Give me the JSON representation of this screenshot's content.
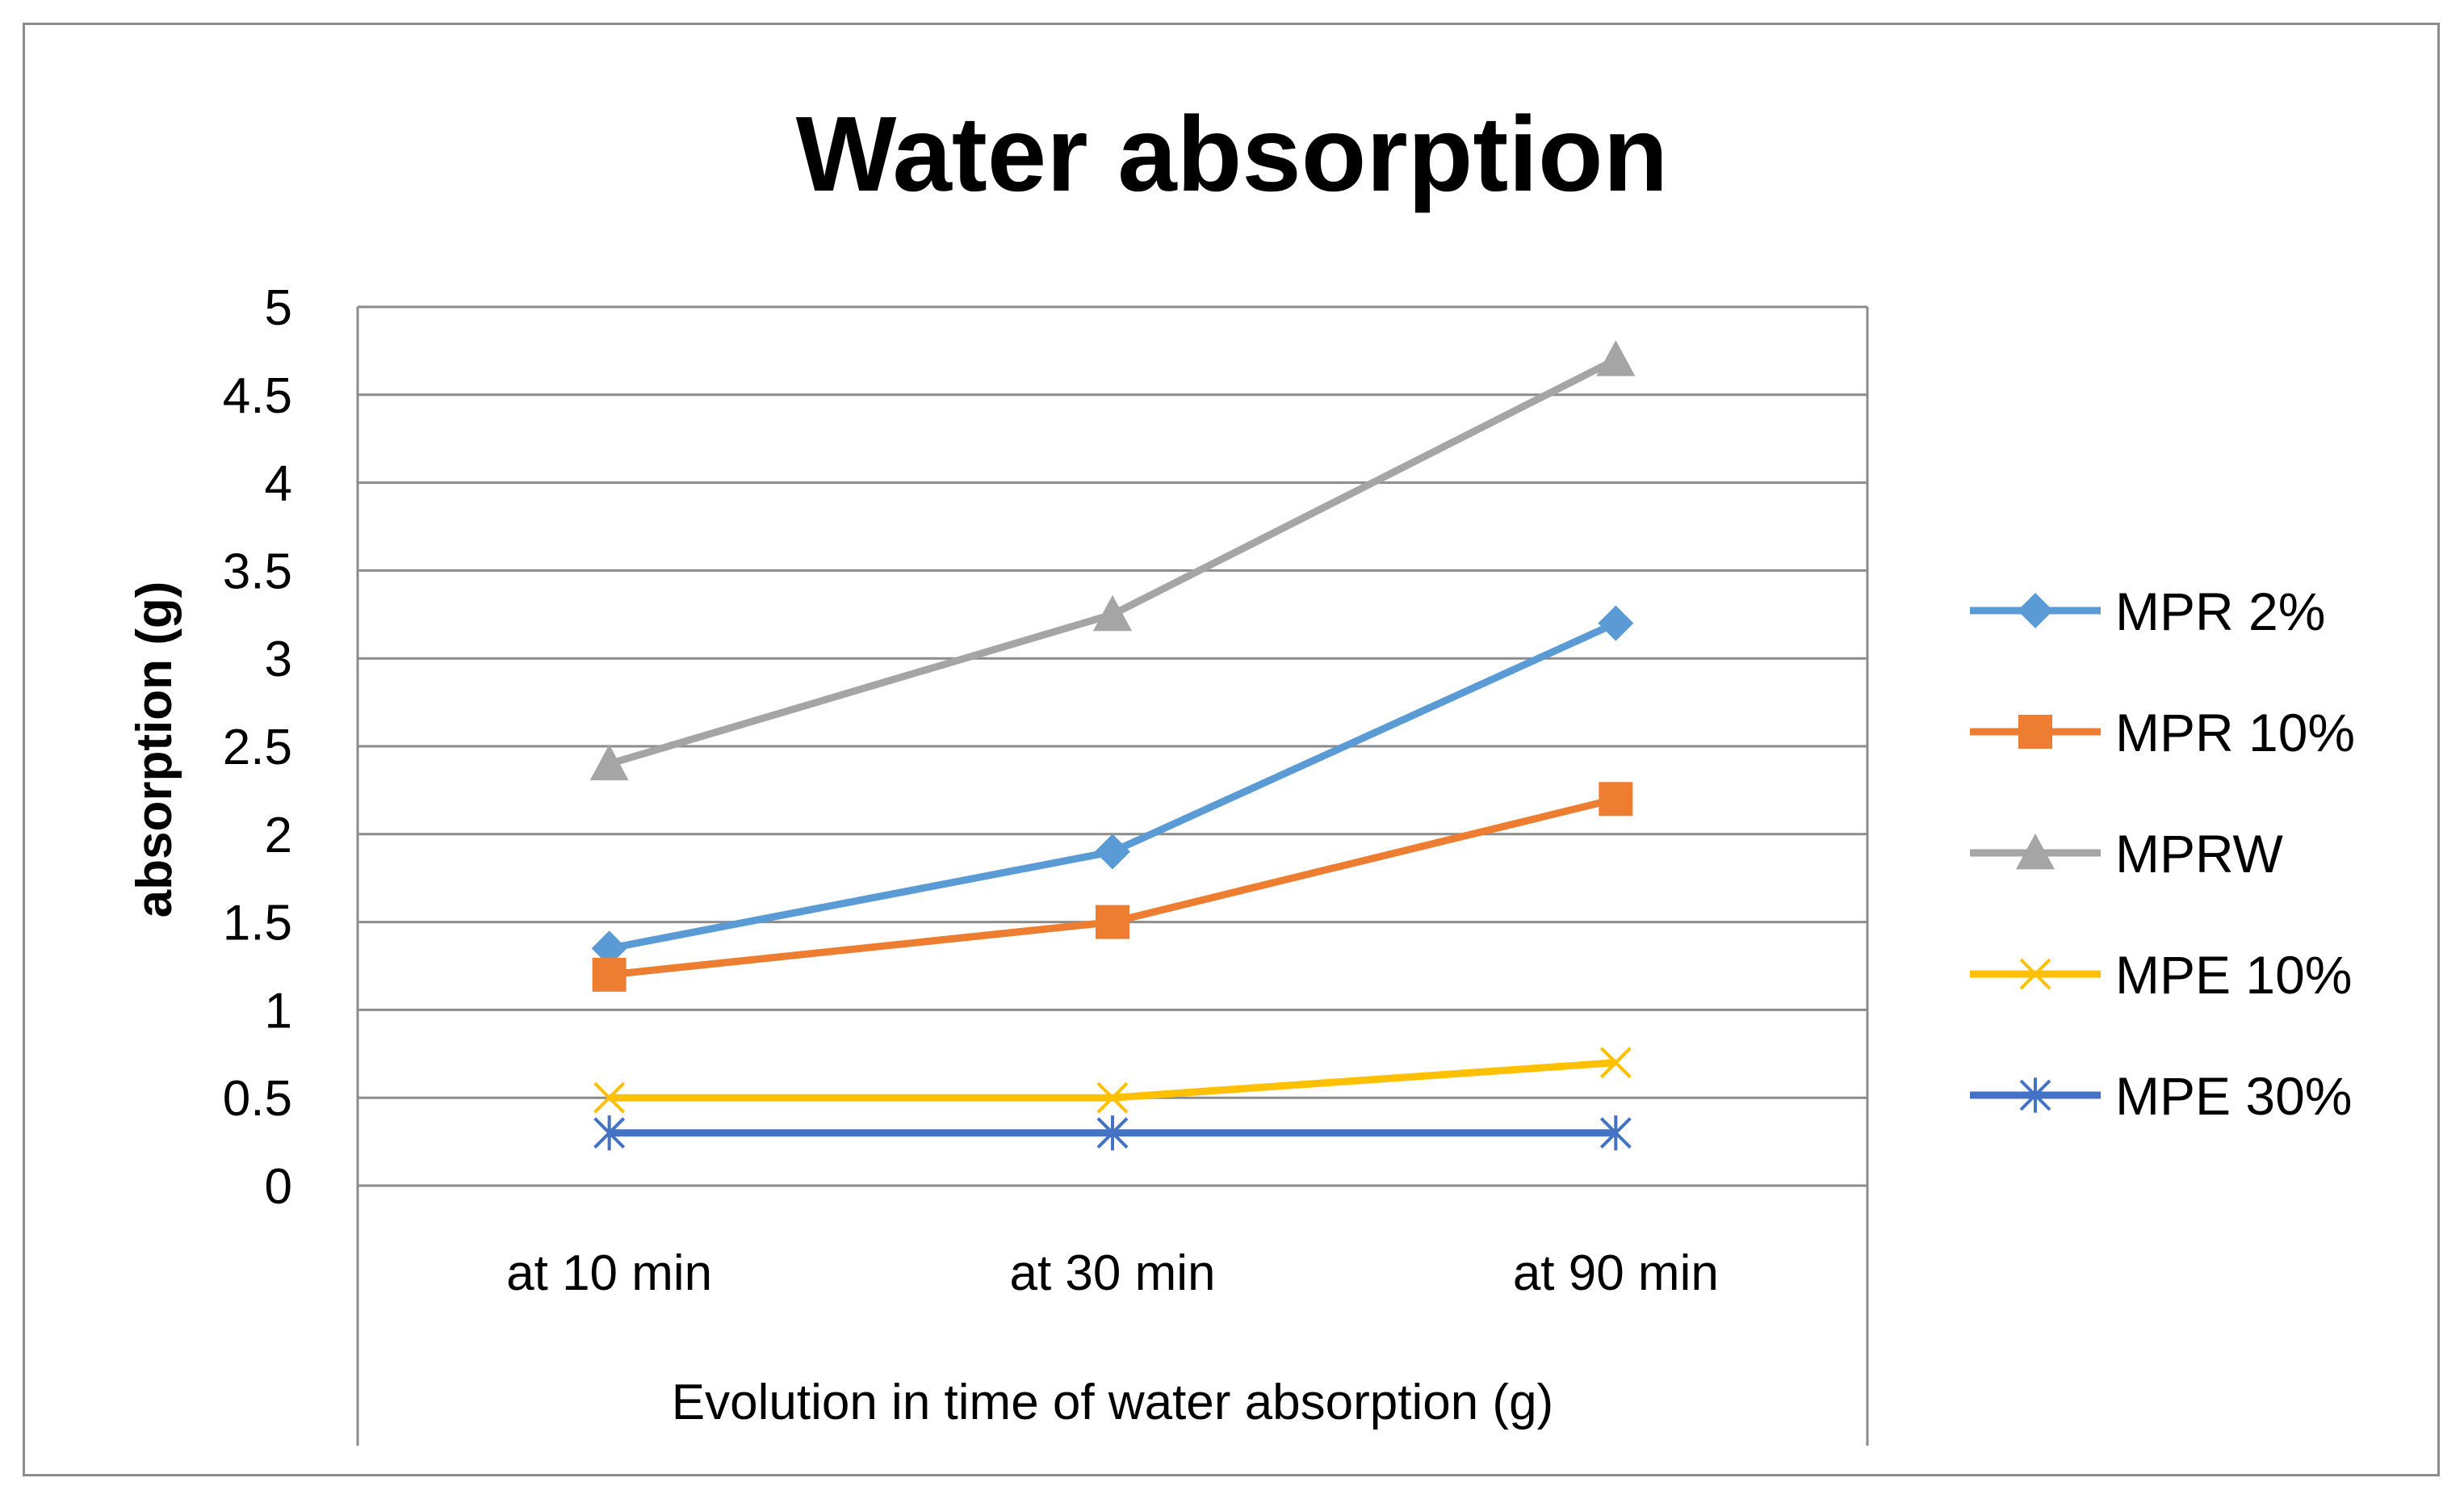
{
  "chart_data": {
    "type": "line",
    "title": "Water absorption",
    "xlabel": "Evolution in time of water absorption (g)",
    "ylabel": "absorption (g)",
    "categories": [
      "at 10 min",
      "at 30 min",
      "at 90 min"
    ],
    "ylim": [
      0,
      5
    ],
    "yticks": [
      0,
      0.5,
      1,
      1.5,
      2,
      2.5,
      3,
      3.5,
      4,
      4.5,
      5
    ],
    "grid": true,
    "legend_position": "right",
    "series": [
      {
        "name": "MPR 2%",
        "values": [
          1.35,
          1.9,
          3.2
        ],
        "color": "#5b9bd5",
        "marker": "diamond"
      },
      {
        "name": "MPR 10%",
        "values": [
          1.2,
          1.5,
          2.2
        ],
        "color": "#ed7d31",
        "marker": "square"
      },
      {
        "name": "MPRW",
        "values": [
          2.4,
          3.25,
          4.7
        ],
        "color": "#a5a5a5",
        "marker": "triangle"
      },
      {
        "name": "MPE 10%",
        "values": [
          0.5,
          0.5,
          0.7
        ],
        "color": "#ffc000",
        "marker": "x"
      },
      {
        "name": "MPE 30%",
        "values": [
          0.3,
          0.3,
          0.3
        ],
        "color": "#4472c4",
        "marker": "star"
      }
    ]
  }
}
